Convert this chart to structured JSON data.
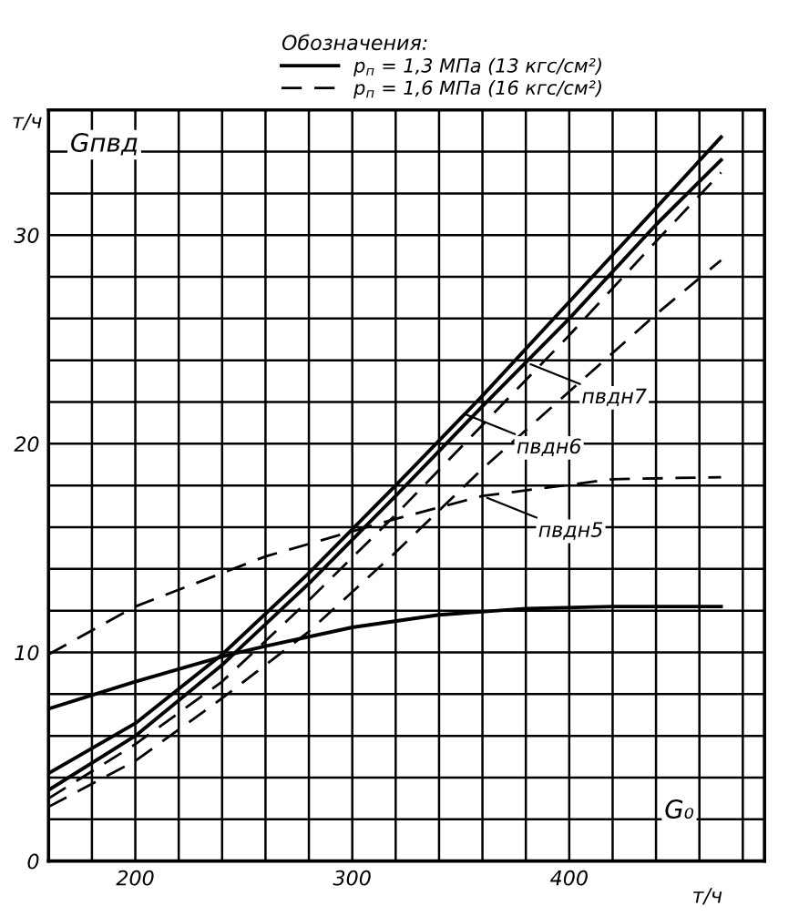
{
  "chart_data": {
    "type": "line",
    "legend_title": "Обозначения:",
    "legend": "top",
    "xlabel": "т/ч",
    "ylabel": "т/ч",
    "xlim": [
      160,
      490
    ],
    "ylim": [
      0,
      36
    ],
    "xticks": [
      {
        "value": 160,
        "label": null
      },
      {
        "value": 180,
        "label": null
      },
      200,
      {
        "value": 220,
        "label": null
      },
      {
        "value": 240,
        "label": null
      },
      {
        "value": 260,
        "label": null
      },
      {
        "value": 280,
        "label": null
      },
      300,
      {
        "value": 320,
        "label": null
      },
      {
        "value": 340,
        "label": null
      },
      {
        "value": 360,
        "label": null
      },
      {
        "value": 380,
        "label": null
      },
      400,
      {
        "value": 420,
        "label": null
      },
      {
        "value": 440,
        "label": null
      },
      {
        "value": 460,
        "label": null
      },
      {
        "value": 480,
        "label": null
      }
    ],
    "yticks": [
      0,
      {
        "value": 2,
        "label": null
      },
      {
        "value": 4,
        "label": null
      },
      {
        "value": 6,
        "label": null
      },
      {
        "value": 8,
        "label": null
      },
      10,
      {
        "value": 12,
        "label": null
      },
      {
        "value": 14,
        "label": null
      },
      {
        "value": 16,
        "label": null
      },
      {
        "value": 18,
        "label": null
      },
      20,
      {
        "value": 22,
        "label": null
      },
      {
        "value": 24,
        "label": null
      },
      {
        "value": 26,
        "label": null
      },
      {
        "value": 28,
        "label": null
      },
      30,
      {
        "value": 32,
        "label": null
      },
      {
        "value": 34,
        "label": null
      }
    ],
    "grid": true,
    "marker": "none",
    "series": [
      {
        "name": "p$_{п}$ = 1,3 МПа (13 кгс/см²)",
        "color": "#000000",
        "line_style": "solid",
        "x": [
          160,
          200,
          240,
          280,
          320,
          360,
          400,
          440,
          470
        ],
        "values": [
          4.2,
          6.6,
          9.9,
          13.8,
          18.0,
          22.3,
          26.8,
          31.3,
          34.7
        ]
      },
      {
        "color": "#000000",
        "line_style": "solid",
        "x": [
          160,
          200,
          240,
          280,
          320,
          360,
          400,
          440,
          470
        ],
        "values": [
          3.4,
          6.0,
          9.4,
          13.3,
          17.5,
          21.8,
          26.0,
          30.5,
          33.6
        ]
      },
      {
        "color": "#000000",
        "line_style": "solid",
        "x": [
          160,
          200,
          240,
          260,
          300,
          340,
          380,
          420,
          470
        ],
        "values": [
          7.3,
          8.6,
          9.8,
          10.3,
          11.2,
          11.8,
          12.1,
          12.2,
          12.2
        ]
      },
      {
        "name": "p$_{п}$ = 1,6 МПа (16 кгс/см²)",
        "color": "#000000",
        "line_style": "dashed",
        "x": [
          160,
          200,
          240,
          280,
          320,
          360,
          400,
          440,
          470
        ],
        "values": [
          3.0,
          5.6,
          8.6,
          12.5,
          16.6,
          20.9,
          25.2,
          29.7,
          33.0
        ]
      },
      {
        "color": "#000000",
        "line_style": "dashed",
        "x": [
          160,
          200,
          240,
          280,
          320,
          360,
          400,
          440,
          470
        ],
        "values": [
          2.6,
          4.8,
          7.8,
          11.0,
          14.8,
          18.8,
          22.5,
          26.2,
          28.8
        ]
      },
      {
        "color": "#000000",
        "line_style": "dashed",
        "x": [
          160,
          200,
          260,
          320,
          360,
          420,
          470
        ],
        "values": [
          9.9,
          12.2,
          14.6,
          16.4,
          17.5,
          18.3,
          18.4
        ]
      }
    ],
    "annotations": [
      "Gпвд",
      "G₀",
      {
        "text": "пвдн7",
        "x": 380,
        "y": 23.9
      },
      {
        "text": "пвдн6",
        "x": 350,
        "y": 21.5
      },
      {
        "text": "пвдн5",
        "x": 360,
        "y": 17.5
      }
    ]
  }
}
